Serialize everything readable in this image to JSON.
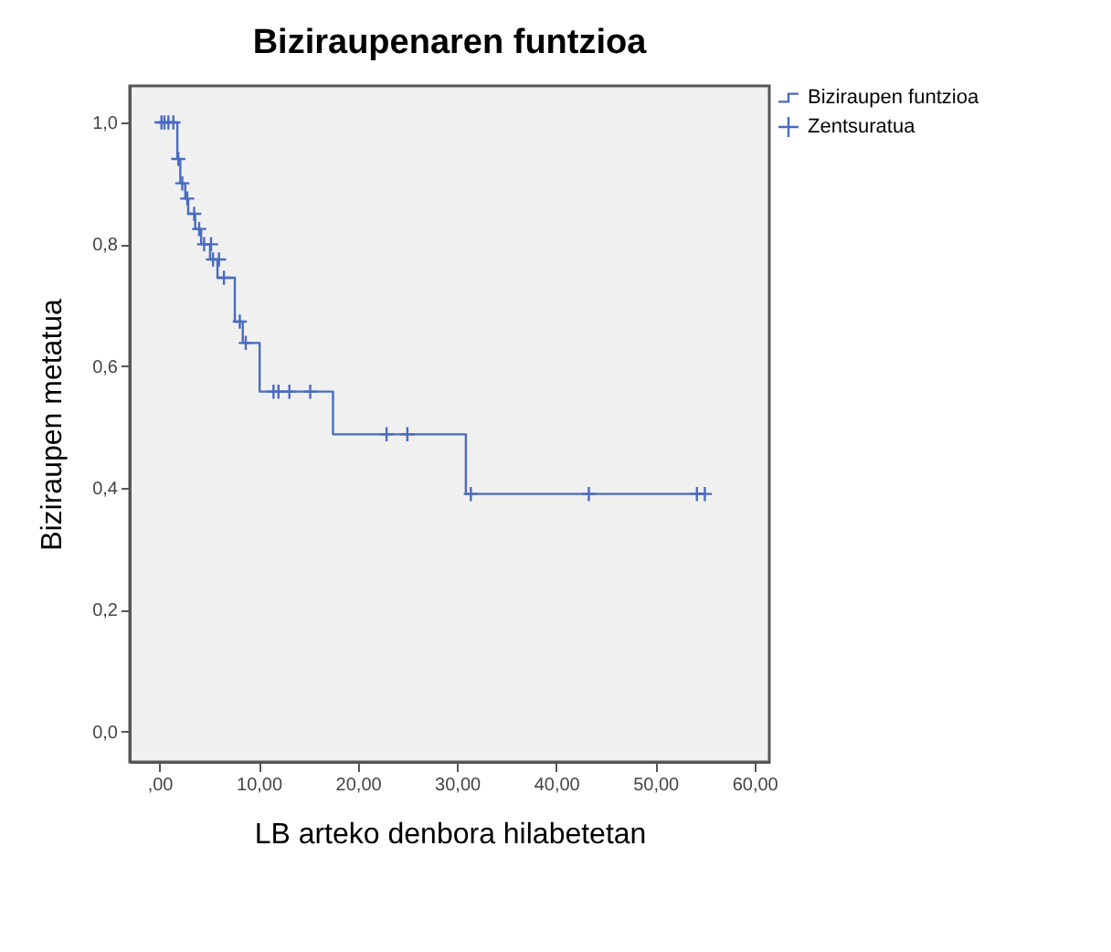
{
  "chart_data": {
    "type": "step",
    "title": "Biziraupenaren funtzioa",
    "xlabel": "LB arteko denbora hilabetetan",
    "ylabel": "Biziraupen metatua",
    "series": [
      {
        "name": "Biziraupen funtzioa",
        "color": "#4a6bbf",
        "marker": "none",
        "x": [
          0,
          1.8,
          2.1,
          2.6,
          2.9,
          3.6,
          4.2,
          5.1,
          5.85,
          7.6,
          8.4,
          10.1,
          17.5,
          30.9,
          55.0
        ],
        "values": [
          1.0,
          0.94,
          0.9,
          0.875,
          0.85,
          0.825,
          0.8,
          0.775,
          0.745,
          0.673,
          0.638,
          0.558,
          0.488,
          0.39,
          0.39
        ]
      },
      {
        "name": "Zentsuratua",
        "type": "scatter",
        "color": "#4a6bbf",
        "marker": "cross",
        "x": [
          0.2,
          0.5,
          0.9,
          1.4,
          1.9,
          2.3,
          2.8,
          3.5,
          4.0,
          4.5,
          5.2,
          5.4,
          6.0,
          6.5,
          8.1,
          8.7,
          11.5,
          12.0,
          13.1,
          15.2,
          22.9,
          25.0,
          31.4,
          43.3,
          54.2,
          55.0
        ],
        "values": [
          1.0,
          1.0,
          1.0,
          1.0,
          0.94,
          0.9,
          0.875,
          0.85,
          0.825,
          0.8,
          0.8,
          0.775,
          0.775,
          0.745,
          0.673,
          0.638,
          0.558,
          0.558,
          0.558,
          0.558,
          0.488,
          0.488,
          0.39,
          0.39,
          0.39,
          0.39
        ]
      }
    ],
    "xlim": [
      -3,
      61.5
    ],
    "ylim": [
      -0.05,
      1.06
    ],
    "xticks": [
      {
        "value": 0,
        "label": ",00"
      },
      {
        "value": 10,
        "label": "10,00"
      },
      {
        "value": 20,
        "label": "20,00"
      },
      {
        "value": 30,
        "label": "30,00"
      },
      {
        "value": 40,
        "label": "40,00"
      },
      {
        "value": 50,
        "label": "50,00"
      },
      {
        "value": 60,
        "label": "60,00"
      }
    ],
    "yticks": [
      {
        "value": 0,
        "label": "0,0"
      },
      {
        "value": 0.2,
        "label": "0,2"
      },
      {
        "value": 0.4,
        "label": "0,4"
      },
      {
        "value": 0.6,
        "label": "0,6"
      },
      {
        "value": 0.8,
        "label": "0,8"
      },
      {
        "value": 1.0,
        "label": "1,0"
      }
    ],
    "grid": false,
    "legend": "top right"
  }
}
